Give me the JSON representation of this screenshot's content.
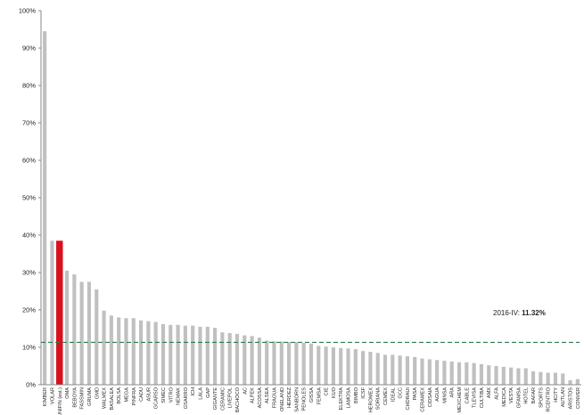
{
  "chart_data": {
    "type": "bar",
    "title": "",
    "xlabel": "",
    "ylabel": "",
    "ylim": [
      0,
      1.0
    ],
    "yticks": [
      "0%",
      "10%",
      "20%",
      "30%",
      "40%",
      "50%",
      "60%",
      "70%",
      "80%",
      "90%",
      "100%"
    ],
    "grid": false,
    "legend": "none",
    "colors": {
      "bar": "#c0c0c0",
      "highlight": "#d9101e",
      "reference": "#2e7d52"
    },
    "highlight_category": "UNIFIN (est.)",
    "categories": [
      "KIMBER",
      "VOLAR",
      "UNIFIN (est.)",
      "OMA",
      "BEBOYA",
      "FASSMIN",
      "GRUMA",
      "GMD",
      "WALMEX",
      "BASALEA",
      "BOLSA",
      "MEGA",
      "PINFRA",
      "CADU",
      "ASUR",
      "GCARSO",
      "SIMEC",
      "VITRO",
      "NEMAK",
      "GSARRO",
      "ICH",
      "LALA",
      "GAP",
      "GIGANTE",
      "CERAMIC",
      "LIVEPOL",
      "BACHOCO",
      "AC",
      "ALPEK",
      "ACOSSA",
      "ALSEA",
      "FRAGUA",
      "ONELAND",
      "HERDEZ",
      "SANBORN",
      "PENOLES",
      "GISSA",
      "FEMSA",
      "CIE",
      "KUO",
      "ELEKTRA",
      "LAMOSA",
      "BIMBO",
      "ICSF",
      "HEROMEX",
      "SORIANA",
      "CEMEX",
      "IDEAL",
      "GCC",
      "CHDRAUI",
      "PASA",
      "CERAMEX",
      "CIDSAIA",
      "AGUA",
      "MINSA",
      "ARA",
      "MEXCHEM",
      "CABLE",
      "TLEVISA",
      "CULTIBA",
      "AMX",
      "ALFA",
      "MEDICA",
      "VESTA",
      "GFAMSA",
      "HOTEL",
      "BAFAR",
      "SPORTS",
      "RCENTRO",
      "HCITY",
      "AUTLAN",
      "ARISTOS",
      "CONVER"
    ],
    "values": [
      0.945,
      0.385,
      0.385,
      0.305,
      0.295,
      0.275,
      0.275,
      0.255,
      0.198,
      0.185,
      0.18,
      0.178,
      0.178,
      0.172,
      0.17,
      0.168,
      0.162,
      0.16,
      0.16,
      0.158,
      0.158,
      0.155,
      0.155,
      0.152,
      0.14,
      0.138,
      0.136,
      0.132,
      0.13,
      0.126,
      0.118,
      0.116,
      0.115,
      0.114,
      0.114,
      0.112,
      0.11,
      0.104,
      0.102,
      0.1,
      0.098,
      0.097,
      0.095,
      0.09,
      0.088,
      0.085,
      0.08,
      0.08,
      0.078,
      0.076,
      0.074,
      0.07,
      0.068,
      0.066,
      0.064,
      0.062,
      0.06,
      0.06,
      0.058,
      0.055,
      0.052,
      0.05,
      0.048,
      0.046,
      0.044,
      0.044,
      0.036,
      0.034,
      0.032,
      0.032,
      0.03,
      0.012,
      0.015
    ],
    "reference_line": {
      "value": 0.1132
    },
    "annotation": {
      "prefix": "2016-IV: ",
      "value": "11.32%"
    }
  }
}
